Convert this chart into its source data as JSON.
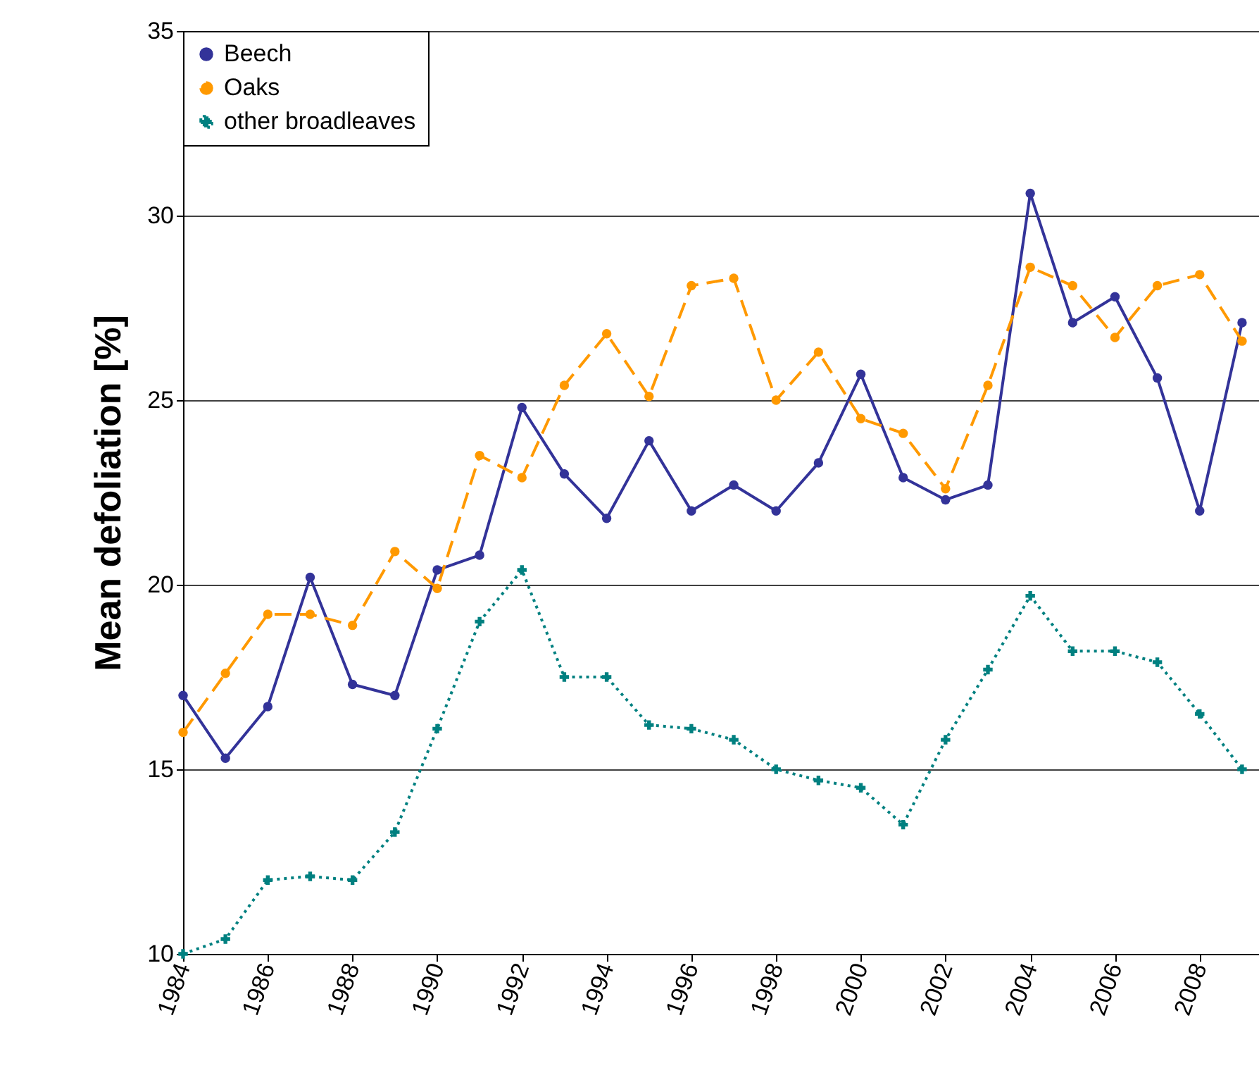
{
  "chart_data": {
    "type": "line",
    "ylabel": "Mean defoliation [%]",
    "x": [
      1984,
      1985,
      1986,
      1987,
      1988,
      1989,
      1990,
      1991,
      1992,
      1993,
      1994,
      1995,
      1996,
      1997,
      1998,
      1999,
      2000,
      2001,
      2002,
      2003,
      2004,
      2005,
      2006,
      2007,
      2008,
      2009
    ],
    "series": [
      {
        "name": "Beech",
        "color": "#333399",
        "marker": "circle",
        "line_style": "solid",
        "values": [
          17.0,
          15.3,
          16.7,
          20.2,
          17.3,
          17.0,
          20.4,
          20.8,
          24.8,
          23.0,
          21.8,
          23.9,
          22.0,
          22.7,
          22.0,
          23.3,
          25.7,
          22.9,
          22.3,
          22.7,
          30.6,
          27.1,
          27.8,
          25.6,
          22.0,
          27.1
        ]
      },
      {
        "name": "Oaks",
        "color": "#ff9900",
        "marker": "circle",
        "line_style": "dashed",
        "values": [
          16.0,
          17.6,
          19.2,
          19.2,
          18.9,
          20.9,
          19.9,
          23.5,
          22.9,
          25.4,
          26.8,
          25.1,
          28.1,
          28.3,
          25.0,
          26.3,
          24.5,
          24.1,
          22.6,
          25.4,
          28.6,
          28.1,
          26.7,
          28.1,
          28.4,
          26.6
        ]
      },
      {
        "name": "other broadleaves",
        "color": "#008080",
        "marker": "cross",
        "line_style": "dotted",
        "values": [
          10.0,
          10.4,
          12.0,
          12.1,
          12.0,
          13.3,
          16.1,
          19.0,
          20.4,
          17.5,
          17.5,
          16.2,
          16.1,
          15.8,
          15.0,
          14.7,
          14.5,
          13.5,
          15.8,
          17.7,
          19.7,
          18.2,
          18.2,
          17.9,
          16.5,
          15.0
        ]
      }
    ],
    "xlim": [
      1984,
      2009.4
    ],
    "xticks": [
      1984,
      1986,
      1988,
      1990,
      1992,
      1994,
      1996,
      1998,
      2000,
      2002,
      2004,
      2006,
      2008
    ],
    "ylim": [
      10,
      35
    ],
    "yticks": [
      10,
      15,
      20,
      25,
      30,
      35
    ],
    "grid": "y",
    "legend": "top left"
  }
}
